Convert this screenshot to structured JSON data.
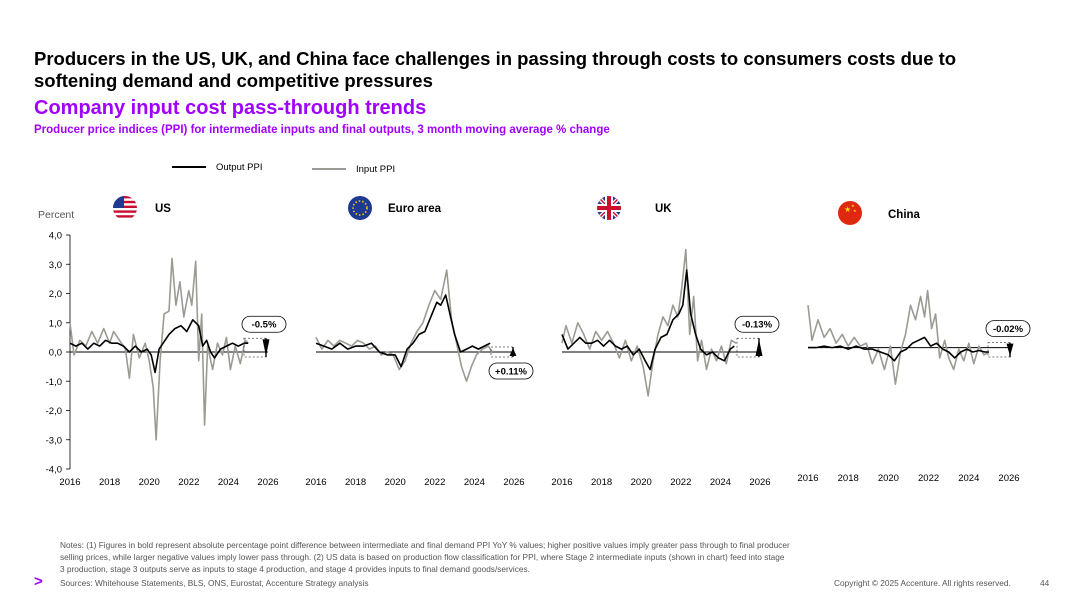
{
  "header": {
    "title": "Producers in the US, UK, and China face challenges in passing through costs to consumers costs due to softening demand and competitive pressures",
    "subtitle": "Company input cost pass-through trends",
    "subsubtitle": "Producer price indices (PPI) for intermediate inputs and final outputs, 3 month moving average % change"
  },
  "colors": {
    "accent": "#a100ff",
    "output": "#000000",
    "input": "#9b9b93"
  },
  "chart_data": {
    "type": "line",
    "ylabel": "Percent",
    "ylim": [
      -4,
      4
    ],
    "yticks": [
      "4,0",
      "3,0",
      "2,0",
      "1,0",
      "0,0",
      "-1,0",
      "-2,0",
      "-3,0",
      "-4,0"
    ],
    "xlim": [
      2016,
      2026
    ],
    "xticks": [
      "2016",
      "2018",
      "2020",
      "2022",
      "2024",
      "2026"
    ],
    "legend": [
      "Output PPI",
      "Input PPI"
    ],
    "panels": [
      {
        "name": "US",
        "flag": "us-flag-icon",
        "annotation": "-0.5%",
        "arrow": "down",
        "annotation_position": "above",
        "output": [
          [
            2016.0,
            0.3
          ],
          [
            2016.3,
            0.2
          ],
          [
            2016.6,
            0.3
          ],
          [
            2016.9,
            0.1
          ],
          [
            2017.2,
            0.3
          ],
          [
            2017.5,
            0.2
          ],
          [
            2017.8,
            0.4
          ],
          [
            2018.1,
            0.3
          ],
          [
            2018.4,
            0.3
          ],
          [
            2018.7,
            0.2
          ],
          [
            2019.0,
            0.0
          ],
          [
            2019.3,
            0.2
          ],
          [
            2019.6,
            0.0
          ],
          [
            2019.9,
            0.1
          ],
          [
            2020.1,
            -0.1
          ],
          [
            2020.3,
            -0.7
          ],
          [
            2020.5,
            0.1
          ],
          [
            2020.7,
            0.3
          ],
          [
            2021.0,
            0.6
          ],
          [
            2021.3,
            0.8
          ],
          [
            2021.6,
            0.9
          ],
          [
            2021.9,
            0.7
          ],
          [
            2022.2,
            1.1
          ],
          [
            2022.5,
            0.9
          ],
          [
            2022.7,
            0.2
          ],
          [
            2022.9,
            0.4
          ],
          [
            2023.1,
            0.0
          ],
          [
            2023.3,
            -0.2
          ],
          [
            2023.6,
            0.1
          ],
          [
            2023.9,
            0.2
          ],
          [
            2024.2,
            0.3
          ],
          [
            2024.5,
            0.2
          ],
          [
            2024.8,
            0.3
          ],
          [
            2025.0,
            0.3
          ]
        ],
        "input": [
          [
            2016.0,
            1.0
          ],
          [
            2016.2,
            -0.1
          ],
          [
            2016.5,
            0.4
          ],
          [
            2016.8,
            0.2
          ],
          [
            2017.1,
            0.7
          ],
          [
            2017.4,
            0.3
          ],
          [
            2017.7,
            0.8
          ],
          [
            2018.0,
            0.3
          ],
          [
            2018.2,
            0.7
          ],
          [
            2018.5,
            0.4
          ],
          [
            2018.8,
            0.1
          ],
          [
            2019.0,
            -0.9
          ],
          [
            2019.2,
            0.6
          ],
          [
            2019.5,
            -0.2
          ],
          [
            2019.8,
            0.3
          ],
          [
            2020.0,
            -0.3
          ],
          [
            2020.2,
            -1.2
          ],
          [
            2020.35,
            -3.0
          ],
          [
            2020.55,
            -0.3
          ],
          [
            2020.75,
            1.3
          ],
          [
            2021.0,
            1.4
          ],
          [
            2021.15,
            3.2
          ],
          [
            2021.35,
            1.6
          ],
          [
            2021.55,
            2.4
          ],
          [
            2021.75,
            1.2
          ],
          [
            2022.0,
            2.1
          ],
          [
            2022.15,
            1.6
          ],
          [
            2022.35,
            3.1
          ],
          [
            2022.5,
            -0.3
          ],
          [
            2022.65,
            1.3
          ],
          [
            2022.8,
            -2.5
          ],
          [
            2022.95,
            0.2
          ],
          [
            2023.2,
            -0.6
          ],
          [
            2023.45,
            0.3
          ],
          [
            2023.7,
            -0.1
          ],
          [
            2023.9,
            0.5
          ],
          [
            2024.1,
            -0.6
          ],
          [
            2024.35,
            0.2
          ],
          [
            2024.6,
            -0.4
          ],
          [
            2024.85,
            0.4
          ],
          [
            2025.0,
            0.3
          ]
        ]
      },
      {
        "name": "Euro area",
        "flag": "eu-flag-icon",
        "annotation": "+0.11%",
        "arrow": "up",
        "annotation_position": "below",
        "output": [
          [
            2016.0,
            0.3
          ],
          [
            2016.4,
            0.2
          ],
          [
            2016.8,
            0.1
          ],
          [
            2017.2,
            0.3
          ],
          [
            2017.6,
            0.1
          ],
          [
            2018.0,
            0.2
          ],
          [
            2018.4,
            0.2
          ],
          [
            2018.8,
            0.3
          ],
          [
            2019.2,
            0.0
          ],
          [
            2019.6,
            -0.1
          ],
          [
            2020.0,
            -0.1
          ],
          [
            2020.3,
            -0.5
          ],
          [
            2020.6,
            0.1
          ],
          [
            2020.9,
            0.3
          ],
          [
            2021.2,
            0.6
          ],
          [
            2021.5,
            0.7
          ],
          [
            2021.8,
            1.2
          ],
          [
            2022.1,
            1.7
          ],
          [
            2022.3,
            1.6
          ],
          [
            2022.55,
            1.95
          ],
          [
            2022.8,
            1.2
          ],
          [
            2023.0,
            0.6
          ],
          [
            2023.3,
            0.0
          ],
          [
            2023.6,
            0.1
          ],
          [
            2023.9,
            0.2
          ],
          [
            2024.2,
            0.1
          ],
          [
            2024.5,
            0.2
          ],
          [
            2024.8,
            0.3
          ]
        ],
        "input": [
          [
            2016.0,
            0.5
          ],
          [
            2016.3,
            0.1
          ],
          [
            2016.6,
            0.4
          ],
          [
            2016.9,
            0.2
          ],
          [
            2017.2,
            0.4
          ],
          [
            2017.5,
            0.3
          ],
          [
            2017.8,
            0.2
          ],
          [
            2018.1,
            0.4
          ],
          [
            2018.4,
            0.3
          ],
          [
            2018.7,
            0.1
          ],
          [
            2019.0,
            0.2
          ],
          [
            2019.3,
            -0.1
          ],
          [
            2019.6,
            0.0
          ],
          [
            2019.9,
            -0.1
          ],
          [
            2020.2,
            -0.6
          ],
          [
            2020.5,
            -0.3
          ],
          [
            2020.8,
            0.3
          ],
          [
            2021.1,
            0.7
          ],
          [
            2021.4,
            1.0
          ],
          [
            2021.7,
            1.6
          ],
          [
            2022.0,
            2.1
          ],
          [
            2022.3,
            1.8
          ],
          [
            2022.6,
            2.8
          ],
          [
            2022.85,
            1.1
          ],
          [
            2023.1,
            0.3
          ],
          [
            2023.35,
            -0.5
          ],
          [
            2023.6,
            -1.0
          ],
          [
            2023.85,
            -0.5
          ],
          [
            2024.1,
            -0.1
          ],
          [
            2024.4,
            0.1
          ],
          [
            2024.7,
            0.2
          ],
          [
            2024.9,
            0.0
          ]
        ]
      },
      {
        "name": "UK",
        "flag": "uk-flag-icon",
        "annotation": "-0.13%",
        "arrow": "up",
        "annotation_position": "above",
        "output": [
          [
            2016.0,
            0.6
          ],
          [
            2016.3,
            0.1
          ],
          [
            2016.6,
            0.3
          ],
          [
            2016.9,
            0.5
          ],
          [
            2017.2,
            0.3
          ],
          [
            2017.5,
            0.3
          ],
          [
            2017.8,
            0.4
          ],
          [
            2018.1,
            0.2
          ],
          [
            2018.4,
            0.4
          ],
          [
            2018.7,
            0.2
          ],
          [
            2019.0,
            0.1
          ],
          [
            2019.3,
            0.2
          ],
          [
            2019.6,
            -0.1
          ],
          [
            2019.9,
            0.1
          ],
          [
            2020.2,
            -0.3
          ],
          [
            2020.45,
            -0.6
          ],
          [
            2020.7,
            0.1
          ],
          [
            2021.0,
            0.5
          ],
          [
            2021.3,
            0.6
          ],
          [
            2021.6,
            1.1
          ],
          [
            2021.9,
            1.3
          ],
          [
            2022.1,
            1.6
          ],
          [
            2022.3,
            2.8
          ],
          [
            2022.5,
            1.3
          ],
          [
            2022.75,
            0.6
          ],
          [
            2023.0,
            0.1
          ],
          [
            2023.3,
            -0.1
          ],
          [
            2023.6,
            0.0
          ],
          [
            2023.9,
            -0.2
          ],
          [
            2024.2,
            -0.3
          ],
          [
            2024.5,
            0.1
          ],
          [
            2024.7,
            0.2
          ]
        ],
        "input": [
          [
            2016.0,
            0.3
          ],
          [
            2016.2,
            0.9
          ],
          [
            2016.5,
            0.3
          ],
          [
            2016.8,
            1.0
          ],
          [
            2017.1,
            0.6
          ],
          [
            2017.4,
            0.1
          ],
          [
            2017.7,
            0.7
          ],
          [
            2018.0,
            0.4
          ],
          [
            2018.3,
            0.7
          ],
          [
            2018.6,
            0.3
          ],
          [
            2018.9,
            -0.2
          ],
          [
            2019.2,
            0.4
          ],
          [
            2019.5,
            -0.3
          ],
          [
            2019.8,
            0.2
          ],
          [
            2020.1,
            -0.5
          ],
          [
            2020.35,
            -1.5
          ],
          [
            2020.6,
            -0.3
          ],
          [
            2020.85,
            0.6
          ],
          [
            2021.1,
            1.2
          ],
          [
            2021.35,
            0.9
          ],
          [
            2021.6,
            1.6
          ],
          [
            2021.85,
            1.2
          ],
          [
            2022.05,
            2.2
          ],
          [
            2022.25,
            3.5
          ],
          [
            2022.45,
            0.6
          ],
          [
            2022.65,
            1.9
          ],
          [
            2022.85,
            -0.3
          ],
          [
            2023.05,
            0.4
          ],
          [
            2023.3,
            -0.6
          ],
          [
            2023.55,
            0.1
          ],
          [
            2023.8,
            -0.3
          ],
          [
            2024.05,
            0.2
          ],
          [
            2024.3,
            -0.4
          ],
          [
            2024.55,
            0.4
          ],
          [
            2024.8,
            0.3
          ]
        ]
      },
      {
        "name": "China",
        "flag": "china-flag-icon",
        "annotation": "-0.02%",
        "arrow": "down",
        "annotation_position": "above",
        "output": [
          [
            2016.0,
            0.15
          ],
          [
            2016.4,
            0.15
          ],
          [
            2016.8,
            0.2
          ],
          [
            2017.2,
            0.15
          ],
          [
            2017.6,
            0.2
          ],
          [
            2018.0,
            0.1
          ],
          [
            2018.4,
            0.2
          ],
          [
            2018.8,
            0.1
          ],
          [
            2019.2,
            0.1
          ],
          [
            2019.6,
            0.0
          ],
          [
            2020.0,
            -0.1
          ],
          [
            2020.3,
            -0.3
          ],
          [
            2020.6,
            0.0
          ],
          [
            2020.9,
            0.1
          ],
          [
            2021.2,
            0.3
          ],
          [
            2021.5,
            0.4
          ],
          [
            2021.8,
            0.5
          ],
          [
            2022.1,
            0.2
          ],
          [
            2022.4,
            0.3
          ],
          [
            2022.7,
            0.1
          ],
          [
            2023.0,
            0.0
          ],
          [
            2023.3,
            -0.2
          ],
          [
            2023.6,
            0.0
          ],
          [
            2023.9,
            0.1
          ],
          [
            2024.2,
            0.0
          ],
          [
            2024.5,
            0.05
          ],
          [
            2024.8,
            0.0
          ],
          [
            2025.0,
            0.0
          ]
        ],
        "input": [
          [
            2016.0,
            1.6
          ],
          [
            2016.2,
            0.4
          ],
          [
            2016.5,
            1.1
          ],
          [
            2016.8,
            0.5
          ],
          [
            2017.1,
            0.8
          ],
          [
            2017.4,
            0.3
          ],
          [
            2017.7,
            0.6
          ],
          [
            2018.0,
            0.2
          ],
          [
            2018.3,
            0.5
          ],
          [
            2018.6,
            0.2
          ],
          [
            2018.9,
            0.3
          ],
          [
            2019.2,
            -0.4
          ],
          [
            2019.5,
            0.1
          ],
          [
            2019.8,
            -0.6
          ],
          [
            2020.1,
            0.2
          ],
          [
            2020.35,
            -1.1
          ],
          [
            2020.6,
            0.0
          ],
          [
            2020.85,
            0.6
          ],
          [
            2021.1,
            1.6
          ],
          [
            2021.35,
            1.1
          ],
          [
            2021.6,
            1.9
          ],
          [
            2021.8,
            1.2
          ],
          [
            2021.95,
            2.1
          ],
          [
            2022.15,
            0.8
          ],
          [
            2022.35,
            1.3
          ],
          [
            2022.55,
            -0.2
          ],
          [
            2022.8,
            0.4
          ],
          [
            2023.0,
            -0.2
          ],
          [
            2023.25,
            -0.6
          ],
          [
            2023.5,
            0.1
          ],
          [
            2023.75,
            -0.3
          ],
          [
            2024.0,
            0.3
          ],
          [
            2024.25,
            -0.4
          ],
          [
            2024.5,
            0.2
          ],
          [
            2024.75,
            -0.1
          ],
          [
            2025.0,
            0.0
          ]
        ]
      }
    ]
  },
  "footer": {
    "notes": "Notes: (1) Figures in bold represent absolute percentage point difference between intermediate and final demand PPI YoY % values; higher positive values imply greater pass through to final producer selling prices, while larger negative values imply lower pass through. (2) US data is based on production flow classification for PPI, where Stage 2 intermediate inputs (shown in chart) feed into stage 3 production, stage 3 outputs serve as inputs to stage 4 production, and stage 4 provides inputs to final demand goods/services.",
    "sources": "Sources: Whitehouse Statements, BLS, ONS, Eurostat, Accenture Strategy analysis",
    "copyright": "Copyright © 2025 Accenture. All rights reserved.",
    "page": "44"
  }
}
